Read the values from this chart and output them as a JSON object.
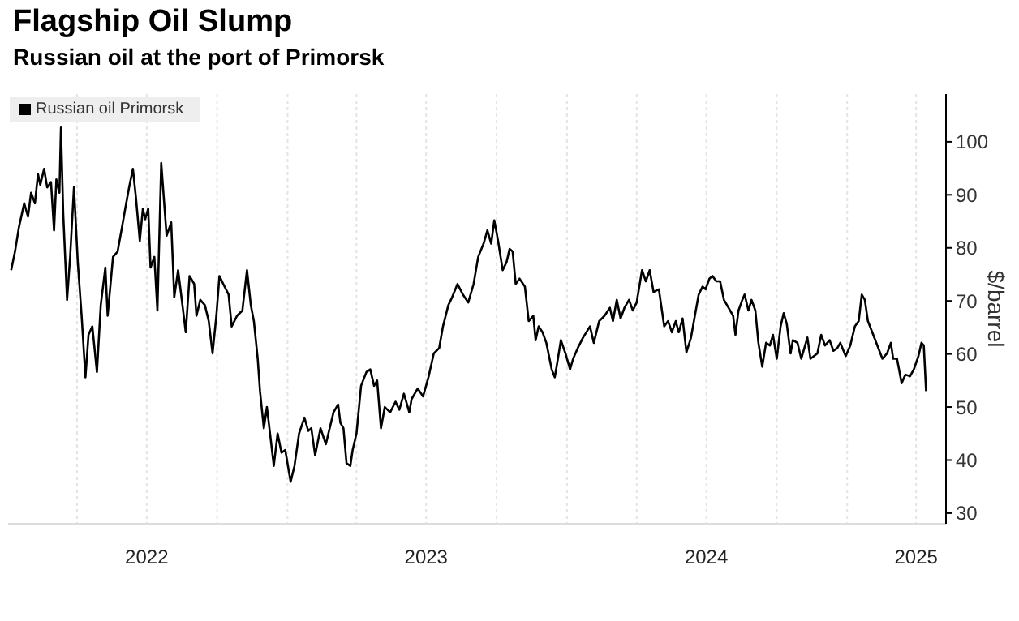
{
  "chart_data": {
    "type": "line",
    "title": "Flagship Oil Slump",
    "subtitle": "Russian oil at the port of Primorsk",
    "ylabel": "$/barrel",
    "x": [
      "2022-01-05",
      "2022-01-10",
      "2022-01-15",
      "2022-01-22",
      "2022-01-27",
      "2022-01-31",
      "2022-02-05",
      "2022-02-09",
      "2022-02-12",
      "2022-02-17",
      "2022-02-21",
      "2022-02-26",
      "2022-03-02",
      "2022-03-05",
      "2022-03-09",
      "2022-03-11",
      "2022-03-14",
      "2022-03-19",
      "2022-03-23",
      "2022-03-28",
      "2022-04-02",
      "2022-04-07",
      "2022-04-12",
      "2022-04-16",
      "2022-04-21",
      "2022-04-27",
      "2022-05-02",
      "2022-05-08",
      "2022-05-11",
      "2022-05-18",
      "2022-05-24",
      "2022-05-29",
      "2022-06-03",
      "2022-06-08",
      "2022-06-13",
      "2022-06-17",
      "2022-06-22",
      "2022-06-26",
      "2022-06-29",
      "2022-07-03",
      "2022-07-06",
      "2022-07-11",
      "2022-07-15",
      "2022-07-20",
      "2022-07-27",
      "2022-08-02",
      "2022-08-06",
      "2022-08-11",
      "2022-08-15",
      "2022-08-21",
      "2022-08-26",
      "2022-09-01",
      "2022-09-04",
      "2022-09-09",
      "2022-09-15",
      "2022-09-20",
      "2022-09-25",
      "2022-09-30",
      "2022-10-04",
      "2022-10-09",
      "2022-10-16",
      "2022-10-20",
      "2022-10-27",
      "2022-11-03",
      "2022-11-09",
      "2022-11-14",
      "2022-11-18",
      "2022-11-23",
      "2022-11-26",
      "2022-12-01",
      "2022-12-05",
      "2022-12-10",
      "2022-12-14",
      "2022-12-19",
      "2022-12-24",
      "2022-12-29",
      "2023-01-05",
      "2023-01-10",
      "2023-01-16",
      "2023-01-23",
      "2023-01-28",
      "2023-02-01",
      "2023-02-06",
      "2023-02-13",
      "2023-02-20",
      "2023-02-25",
      "2023-03-02",
      "2023-03-08",
      "2023-03-11",
      "2023-03-15",
      "2023-03-19",
      "2023-03-24",
      "2023-03-27",
      "2023-04-01",
      "2023-04-07",
      "2023-04-14",
      "2023-04-19",
      "2023-04-24",
      "2023-04-28",
      "2023-05-03",
      "2023-05-08",
      "2023-05-15",
      "2023-05-22",
      "2023-05-27",
      "2023-06-02",
      "2023-06-09",
      "2023-06-12",
      "2023-06-20",
      "2023-06-27",
      "2023-07-04",
      "2023-07-11",
      "2023-07-18",
      "2023-07-23",
      "2023-07-30",
      "2023-08-04",
      "2023-08-11",
      "2023-08-18",
      "2023-08-25",
      "2023-09-01",
      "2023-09-07",
      "2023-09-14",
      "2023-09-19",
      "2023-09-24",
      "2023-09-28",
      "2023-10-03",
      "2023-10-09",
      "2023-10-14",
      "2023-10-18",
      "2023-10-22",
      "2023-10-26",
      "2023-10-31",
      "2023-11-07",
      "2023-11-12",
      "2023-11-18",
      "2023-11-21",
      "2023-11-25",
      "2023-11-30",
      "2023-12-05",
      "2023-12-12",
      "2023-12-16",
      "2023-12-19",
      "2023-12-24",
      "2023-12-30",
      "2024-01-05",
      "2024-01-09",
      "2024-01-15",
      "2024-01-22",
      "2024-01-31",
      "2024-02-05",
      "2024-02-12",
      "2024-02-19",
      "2024-02-26",
      "2024-03-01",
      "2024-03-06",
      "2024-03-11",
      "2024-03-16",
      "2024-03-22",
      "2024-03-27",
      "2024-04-01",
      "2024-04-08",
      "2024-04-13",
      "2024-04-18",
      "2024-04-23",
      "2024-04-30",
      "2024-05-07",
      "2024-05-12",
      "2024-05-17",
      "2024-05-22",
      "2024-05-26",
      "2024-05-31",
      "2024-06-05",
      "2024-06-11",
      "2024-06-16",
      "2024-06-21",
      "2024-06-26",
      "2024-06-30",
      "2024-07-05",
      "2024-07-09",
      "2024-07-14",
      "2024-07-19",
      "2024-07-24",
      "2024-07-30",
      "2024-08-05",
      "2024-08-08",
      "2024-08-12",
      "2024-08-17",
      "2024-08-20",
      "2024-08-25",
      "2024-08-29",
      "2024-09-03",
      "2024-09-07",
      "2024-09-12",
      "2024-09-17",
      "2024-09-22",
      "2024-09-26",
      "2024-10-01",
      "2024-10-06",
      "2024-10-10",
      "2024-10-14",
      "2024-10-19",
      "2024-10-22",
      "2024-10-28",
      "2024-11-02",
      "2024-11-05",
      "2024-11-10",
      "2024-11-14",
      "2024-11-23",
      "2024-11-28",
      "2024-12-03",
      "2024-12-09",
      "2024-12-14",
      "2024-12-19",
      "2024-12-23",
      "2024-12-30",
      "2025-01-05",
      "2025-01-11",
      "2025-01-16",
      "2025-01-20",
      "2025-01-24",
      "2025-01-28",
      "2025-02-04",
      "2025-02-12",
      "2025-02-16",
      "2025-02-22",
      "2025-02-27",
      "2025-03-02",
      "2025-03-07",
      "2025-03-09",
      "2025-03-13",
      "2025-03-18",
      "2025-03-24",
      "2025-03-29",
      "2025-04-04",
      "2025-04-08",
      "2025-04-11",
      "2025-04-14"
    ],
    "series": [
      {
        "name": "Russian oil Primorsk",
        "color": "#000000",
        "values": [
          75.8,
          79.3,
          83.8,
          88.4,
          85.9,
          90.4,
          88.4,
          93.9,
          91.9,
          94.9,
          91.4,
          92.4,
          83.3,
          92.9,
          90.4,
          102.7,
          86.4,
          70.2,
          78.3,
          91.4,
          77.3,
          67.2,
          55.6,
          63.6,
          65.2,
          56.6,
          69.2,
          76.3,
          67.2,
          78.3,
          79.3,
          83.3,
          87.4,
          91.4,
          94.9,
          89.4,
          81.3,
          87.4,
          85.4,
          87.4,
          76.3,
          78.3,
          68.2,
          96.0,
          82.3,
          84.8,
          70.7,
          75.8,
          71.2,
          64.1,
          74.7,
          73.2,
          67.2,
          70.2,
          69.2,
          66.2,
          60.1,
          67.2,
          74.7,
          73.2,
          71.2,
          65.2,
          67.2,
          68.2,
          75.8,
          69.2,
          66.2,
          59.1,
          53.0,
          46.0,
          50.0,
          43.9,
          38.9,
          45.0,
          41.4,
          41.9,
          35.9,
          38.9,
          45.0,
          48.0,
          45.5,
          46.0,
          40.9,
          46.0,
          43.0,
          46.0,
          49.0,
          50.5,
          47.0,
          46.0,
          39.4,
          38.9,
          41.9,
          45.0,
          54.0,
          56.6,
          57.1,
          54.0,
          55.0,
          46.0,
          50.0,
          49.0,
          51.0,
          49.5,
          52.5,
          49.0,
          51.5,
          53.5,
          52.0,
          55.6,
          60.1,
          61.1,
          65.2,
          69.2,
          70.7,
          73.2,
          71.2,
          69.7,
          73.2,
          78.3,
          80.8,
          83.3,
          80.8,
          85.2,
          81.3,
          75.8,
          77.3,
          79.8,
          79.3,
          73.2,
          74.2,
          72.7,
          66.2,
          67.2,
          62.6,
          65.2,
          64.1,
          62.1,
          57.1,
          55.6,
          58.1,
          62.6,
          60.1,
          57.1,
          59.1,
          61.1,
          63.1,
          65.2,
          62.1,
          66.2,
          67.2,
          68.7,
          66.2,
          70.2,
          66.7,
          68.7,
          70.2,
          68.2,
          69.7,
          75.8,
          73.7,
          75.8,
          71.7,
          72.2,
          65.2,
          66.2,
          64.1,
          66.2,
          64.1,
          66.7,
          60.3,
          63.1,
          67.2,
          71.2,
          72.7,
          72.2,
          74.2,
          74.7,
          73.7,
          73.7,
          70.2,
          68.7,
          67.2,
          63.6,
          68.2,
          70.2,
          71.2,
          68.2,
          70.2,
          68.2,
          62.1,
          57.6,
          62.1,
          61.6,
          63.6,
          59.1,
          65.2,
          67.7,
          65.7,
          60.1,
          62.6,
          62.1,
          59.1,
          60.6,
          63.1,
          59.1,
          60.1,
          63.6,
          61.6,
          62.6,
          60.6,
          61.1,
          62.1,
          59.6,
          61.6,
          65.2,
          66.2,
          71.2,
          70.2,
          66.2,
          63.6,
          60.6,
          59.1,
          60.1,
          62.1,
          59.1,
          59.1,
          57.6,
          54.5,
          56.1,
          55.8,
          57.1,
          59.6,
          62.1,
          61.6,
          53.0
        ]
      }
    ],
    "xlim": [
      "2022-01-01",
      "2025-05-10"
    ],
    "xticks": [
      {
        "value": "2022-04-01",
        "label": null
      },
      {
        "value": "2022-07-01",
        "label": "2022"
      },
      {
        "value": "2022-10-01",
        "label": null
      },
      {
        "value": "2023-01-01",
        "label": null
      },
      {
        "value": "2023-04-01",
        "label": null
      },
      {
        "value": "2023-07-01",
        "label": "2023"
      },
      {
        "value": "2023-10-01",
        "label": null
      },
      {
        "value": "2024-01-01",
        "label": null
      },
      {
        "value": "2024-04-01",
        "label": null
      },
      {
        "value": "2024-07-01",
        "label": "2024"
      },
      {
        "value": "2024-10-01",
        "label": null
      },
      {
        "value": "2025-01-01",
        "label": null
      },
      {
        "value": "2025-04-01",
        "label": "2025"
      }
    ],
    "ylim": [
      28,
      109
    ],
    "yticks": [
      30,
      40,
      50,
      60,
      70,
      80,
      90,
      100
    ],
    "grid": true,
    "legend": "top left",
    "marker": "none",
    "line_style": "solid"
  }
}
